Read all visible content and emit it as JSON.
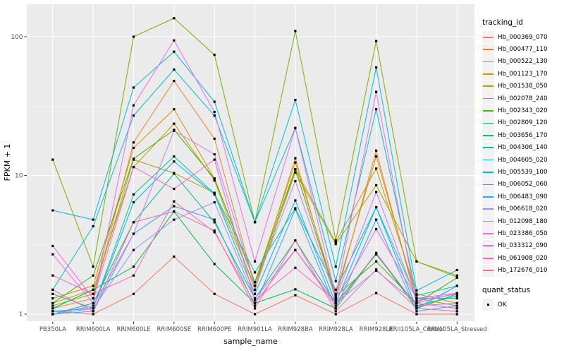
{
  "figure": {
    "background": "#FFFFFF",
    "panel_background": "#EBEBEB",
    "grid_color": "#FFFFFF",
    "axis_text_color": "#4D4D4D",
    "axis_title_color": "#000000",
    "tick_color": "#333333",
    "point_color": "#000000"
  },
  "legend": {
    "tracking_title": "tracking_id",
    "quant_title": "quant_status",
    "quant_ok_label": "OK"
  },
  "chart_data": {
    "type": "line",
    "title": "",
    "xlabel": "sample_name",
    "ylabel": "FPKM + 1",
    "y_scale": "log10",
    "y_ticks": [
      1,
      10,
      100
    ],
    "y_tick_labels": [
      "1",
      "10",
      "100"
    ],
    "y_minor_ticks": [
      3.162,
      31.62
    ],
    "ylim": [
      0.89,
      171
    ],
    "grid": true,
    "legend_position": "right",
    "point_shape": "square",
    "categories": [
      "PB350LA",
      "RRIM600LA",
      "RRIM600LE",
      "RRIM600SE",
      "RRIM600PE",
      "RRIM901LA",
      "RRIM928BA",
      "RRIM928LA",
      "RRIM928LE",
      "RRII105LA_Control",
      "RRII105LA_Stressed"
    ],
    "series": [
      {
        "name": "Hb_000369_070",
        "color": "#F8766D",
        "values": [
          1.05,
          1.0,
          1.4,
          2.6,
          1.4,
          1.0,
          1.37,
          1.0,
          1.42,
          1.0,
          1.0
        ]
      },
      {
        "name": "Hb_000477_110",
        "color": "#EA8331",
        "values": [
          1.1,
          1.3,
          17.3,
          48,
          18.4,
          1.6,
          13.3,
          1.3,
          15.1,
          1.2,
          1.1
        ]
      },
      {
        "name": "Hb_000522_130",
        "color": "#D89000",
        "values": [
          1.3,
          1.6,
          15.8,
          30,
          9.5,
          1.7,
          12.4,
          1.4,
          13.7,
          1.3,
          1.15
        ]
      },
      {
        "name": "Hb_001123_170",
        "color": "#C09B00",
        "values": [
          1.2,
          1.5,
          11.5,
          23.6,
          9.2,
          1.5,
          11.0,
          3.3,
          11.2,
          1.4,
          1.2
        ]
      },
      {
        "name": "Hb_001538_050",
        "color": "#A3A500",
        "values": [
          1.15,
          1.4,
          13.0,
          10.4,
          7.5,
          1.6,
          10.5,
          3.2,
          8.5,
          2.4,
          1.9
        ]
      },
      {
        "name": "Hb_002078_240",
        "color": "#7CAE00",
        "values": [
          13,
          2.2,
          100,
          136,
          74,
          4.6,
          110,
          3.4,
          93,
          2.4,
          1.85
        ]
      },
      {
        "name": "Hb_002343_020",
        "color": "#39B600",
        "values": [
          1.2,
          1.9,
          13.2,
          21.3,
          9.5,
          1.7,
          11.1,
          1.35,
          2.4,
          1.2,
          1.83
        ]
      },
      {
        "name": "Hb_002809_120",
        "color": "#00BB4E",
        "values": [
          1.1,
          1.5,
          2.2,
          5.5,
          2.3,
          1.2,
          1.51,
          1.1,
          2.76,
          1.1,
          1.4
        ]
      },
      {
        "name": "Hb_003656_170",
        "color": "#00BF7D",
        "values": [
          1.0,
          1.2,
          4.6,
          10.3,
          4.6,
          1.3,
          3.4,
          1.2,
          2.7,
          1.15,
          1.35
        ]
      },
      {
        "name": "Hb_004306_140",
        "color": "#00C1A3",
        "values": [
          1.4,
          1.1,
          7.3,
          13.7,
          7.4,
          2.0,
          5.8,
          1.5,
          5.9,
          1.3,
          1.3
        ]
      },
      {
        "name": "Hb_004605_020",
        "color": "#00BFC4",
        "values": [
          1.5,
          4.3,
          27,
          58,
          27,
          4.6,
          22,
          1.73,
          30,
          1.36,
          1.6
        ]
      },
      {
        "name": "Hb_005539_100",
        "color": "#00BAE0",
        "values": [
          5.6,
          4.8,
          43,
          78,
          34,
          4.6,
          35,
          2.2,
          60,
          1.48,
          2.08
        ]
      },
      {
        "name": "Hb_006052_060",
        "color": "#00B0F6",
        "values": [
          1.05,
          1.1,
          6.4,
          12.6,
          7.3,
          1.4,
          6.6,
          1.2,
          5.9,
          1.1,
          1.6
        ]
      },
      {
        "name": "Hb_006483_090",
        "color": "#35A2FF",
        "values": [
          1.0,
          1.05,
          3.8,
          6.0,
          4.8,
          1.15,
          5.7,
          1.1,
          4.8,
          1.05,
          1.15
        ]
      },
      {
        "name": "Hb_006618_020",
        "color": "#9590FF",
        "values": [
          1.0,
          1.1,
          2.9,
          4.8,
          6.4,
          1.3,
          2.9,
          1.2,
          2.06,
          1.2,
          1.1
        ]
      },
      {
        "name": "Hb_012098_180",
        "color": "#C77CFF",
        "values": [
          1.0,
          1.15,
          3.8,
          21.0,
          14.2,
          1.6,
          9.1,
          1.3,
          7.6,
          1.25,
          1.4
        ]
      },
      {
        "name": "Hb_023386_050",
        "color": "#E76BF3",
        "values": [
          2.7,
          1.2,
          32,
          94,
          28.7,
          2.4,
          21.9,
          1.35,
          40,
          1.2,
          1.42
        ]
      },
      {
        "name": "Hb_033312_090",
        "color": "#FA62DB",
        "values": [
          3.1,
          1.3,
          11.5,
          8.0,
          13.0,
          1.26,
          2.16,
          1.25,
          4.1,
          1.3,
          1.42
        ]
      },
      {
        "name": "Hb_061908_020",
        "color": "#FF62BC",
        "values": [
          1.9,
          1.4,
          1.9,
          6.5,
          3.9,
          1.2,
          2.9,
          1.15,
          2.76,
          1.15,
          1.2
        ]
      },
      {
        "name": "Hb_172676_010",
        "color": "#FF6A98",
        "values": [
          1.5,
          1.05,
          4.6,
          5.5,
          4.0,
          1.1,
          3.4,
          1.05,
          2.1,
          1.1,
          1.05
        ]
      }
    ]
  }
}
